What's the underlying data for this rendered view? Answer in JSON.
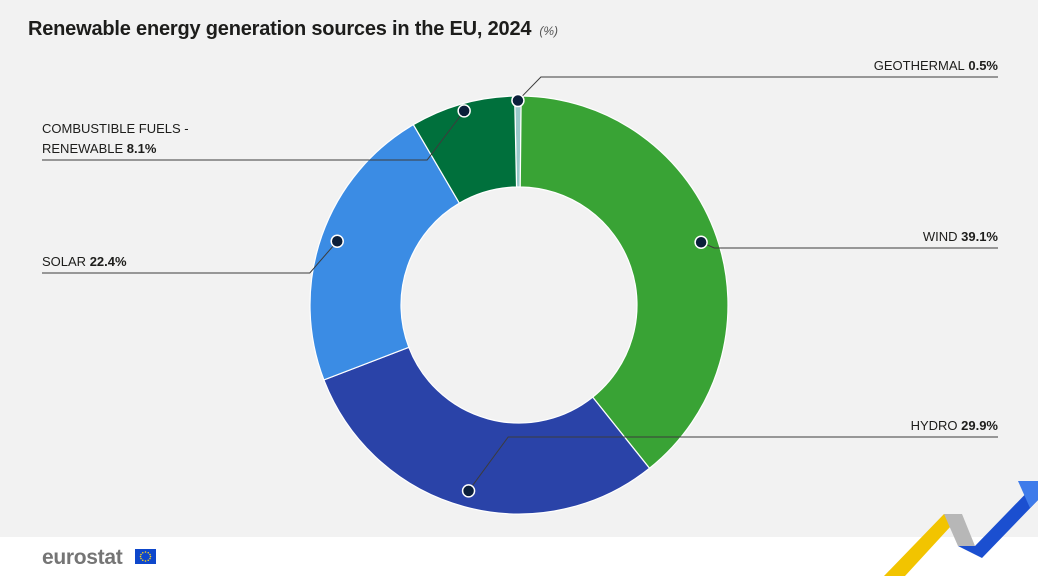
{
  "chart_data": {
    "type": "pie",
    "title": "Renewable energy generation sources in the EU, 2024",
    "unit": "(%)",
    "series": [
      {
        "label_lines": [
          "GEOTHERMAL"
        ],
        "value": 0.5,
        "value_label": "0.5%",
        "color": "#99c9c9"
      },
      {
        "label_lines": [
          "WIND"
        ],
        "value": 39.1,
        "value_label": "39.1%",
        "color": "#39a335"
      },
      {
        "label_lines": [
          "HYDRO"
        ],
        "value": 29.9,
        "value_label": "29.9%",
        "color": "#2a43a8"
      },
      {
        "label_lines": [
          "SOLAR"
        ],
        "value": 22.4,
        "value_label": "22.4%",
        "color": "#3b8ce4"
      },
      {
        "label_lines": [
          "COMBUSTIBLE FUELS -",
          "RENEWABLE"
        ],
        "value": 8.1,
        "value_label": "8.1%",
        "color": "#00703c"
      }
    ],
    "donut": true,
    "legend": "none"
  },
  "footer": {
    "brand": "eurostat"
  },
  "colors": {
    "background": "#f2f2f2",
    "leader_line": "#3c3c3c",
    "marker": "#0b1f3a"
  }
}
